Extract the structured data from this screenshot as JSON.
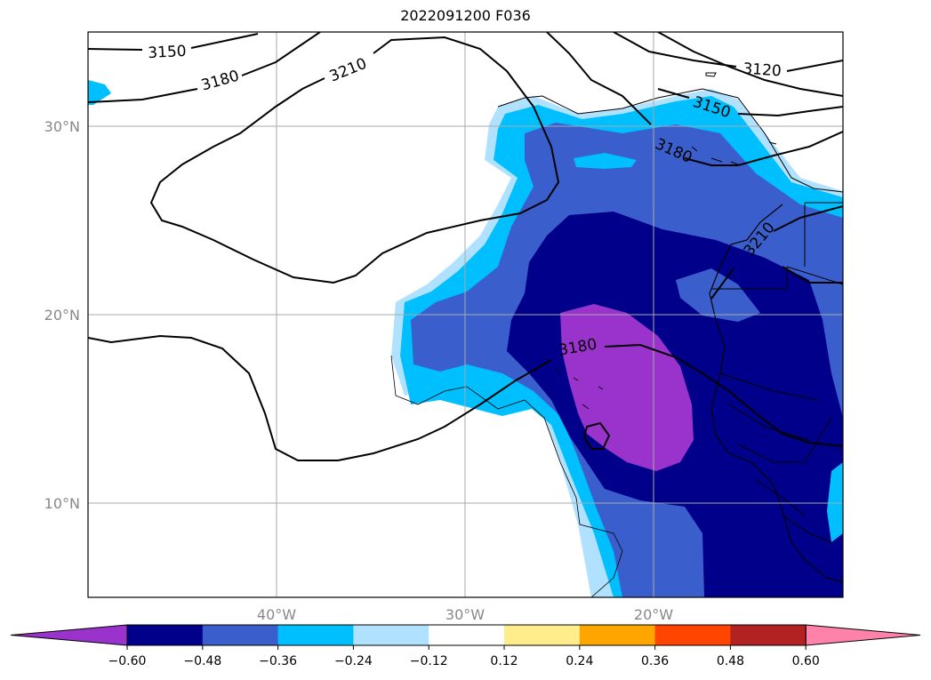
{
  "title": "2022091200 F036",
  "map": {
    "lon_range": [
      -50,
      -10
    ],
    "lat_range": [
      5,
      35
    ],
    "gridlines": true,
    "lon_labels": [
      "40°W",
      "30°W",
      "20°W"
    ],
    "lat_labels": [
      "30°N",
      "20°N",
      "10°N"
    ],
    "contour_values": [
      3120,
      3150,
      3180,
      3210
    ],
    "contour_labels": [
      {
        "text": "3150"
      },
      {
        "text": "3180"
      },
      {
        "text": "3210"
      },
      {
        "text": "3120"
      },
      {
        "text": "3150"
      },
      {
        "text": "3180"
      },
      {
        "text": "3210"
      },
      {
        "text": "3180"
      }
    ]
  },
  "colorbar": {
    "colors": [
      "#9933cc",
      "#00008b",
      "#3a5fcd",
      "#00bfff",
      "#b0e2ff",
      "#ffffff",
      "#ffec8b",
      "#ffa500",
      "#ff4500",
      "#b22222",
      "#ff82ab"
    ],
    "tick_labels": [
      "−0.60",
      "−0.48",
      "−0.36",
      "−0.24",
      "−0.12",
      "0.12",
      "0.24",
      "0.36",
      "0.48",
      "0.60"
    ],
    "extend": "both"
  }
}
